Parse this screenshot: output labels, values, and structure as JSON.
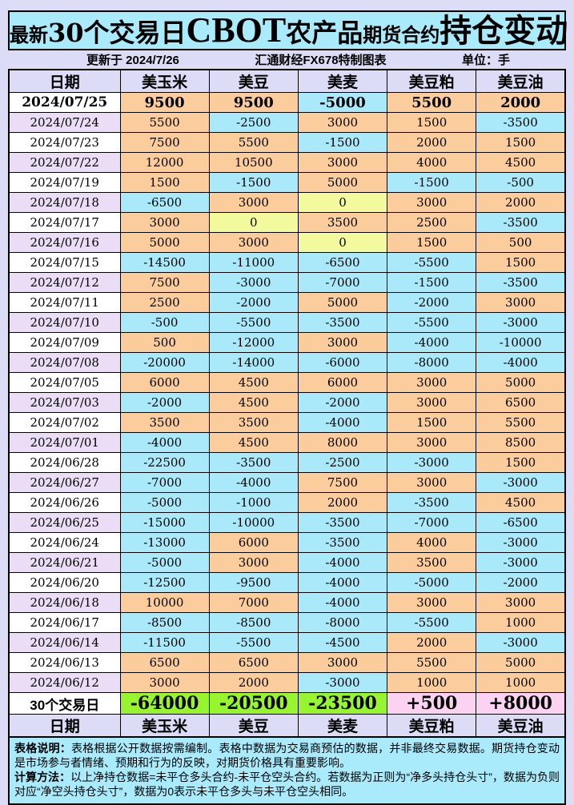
{
  "title": {
    "part1": "最新",
    "part2": "30个交易日",
    "part3": "CBOT",
    "part4": "农产品",
    "part5": "期货合约",
    "part6": "持仓变动"
  },
  "subtitle": {
    "updated": "更新于 2024/7/26",
    "source": "汇通财经FX678特制图表",
    "unit": "单位：手"
  },
  "chart_data": {
    "type": "table",
    "title": "最新30个交易日CBOT农产品期货合约持仓变动",
    "unit": "手",
    "columns": [
      "日期",
      "美玉米",
      "美豆",
      "美麦",
      "美豆粕",
      "美豆油"
    ],
    "rows": [
      {
        "date": "2024/07/25",
        "values": [
          9500,
          9500,
          -5000,
          5500,
          2000
        ]
      },
      {
        "date": "2024/07/24",
        "values": [
          5500,
          -2500,
          3000,
          1500,
          -3500
        ]
      },
      {
        "date": "2024/07/23",
        "values": [
          7500,
          5500,
          -1500,
          2000,
          1500
        ]
      },
      {
        "date": "2024/07/22",
        "values": [
          12000,
          10500,
          3000,
          4000,
          4500
        ]
      },
      {
        "date": "2024/07/19",
        "values": [
          1500,
          -1500,
          5000,
          -1500,
          -500
        ]
      },
      {
        "date": "2024/07/18",
        "values": [
          -6500,
          3000,
          0,
          3000,
          2000
        ]
      },
      {
        "date": "2024/07/17",
        "values": [
          3000,
          0,
          3500,
          2500,
          -3500
        ]
      },
      {
        "date": "2024/07/16",
        "values": [
          5000,
          3000,
          0,
          1500,
          500
        ]
      },
      {
        "date": "2024/07/15",
        "values": [
          -14500,
          -11000,
          -6500,
          -5500,
          1500
        ]
      },
      {
        "date": "2024/07/12",
        "values": [
          7500,
          -3000,
          -7000,
          -1500,
          -3500
        ]
      },
      {
        "date": "2024/07/11",
        "values": [
          2500,
          -2000,
          5000,
          -2000,
          3000
        ]
      },
      {
        "date": "2024/07/10",
        "values": [
          -500,
          -5500,
          -3500,
          -5500,
          -3000
        ]
      },
      {
        "date": "2024/07/09",
        "values": [
          500,
          -12000,
          3000,
          -4000,
          -10000
        ]
      },
      {
        "date": "2024/07/08",
        "values": [
          -20000,
          -14000,
          -6000,
          -8000,
          -4000
        ]
      },
      {
        "date": "2024/07/05",
        "values": [
          6000,
          4500,
          6000,
          3000,
          5000
        ]
      },
      {
        "date": "2024/07/03",
        "values": [
          -2000,
          4500,
          -2000,
          3000,
          6500
        ]
      },
      {
        "date": "2024/07/02",
        "values": [
          3500,
          3500,
          -4000,
          1500,
          5500
        ]
      },
      {
        "date": "2024/07/01",
        "values": [
          -4000,
          4500,
          8000,
          3000,
          8500
        ]
      },
      {
        "date": "2024/06/28",
        "values": [
          -22500,
          -3500,
          -2500,
          -3000,
          1500
        ]
      },
      {
        "date": "2024/06/27",
        "values": [
          -7000,
          -4000,
          7500,
          3000,
          -3000
        ]
      },
      {
        "date": "2024/06/26",
        "values": [
          -5000,
          -1000,
          2000,
          -3500,
          4500
        ]
      },
      {
        "date": "2024/06/25",
        "values": [
          -15000,
          -10000,
          -3500,
          -7000,
          -6500
        ]
      },
      {
        "date": "2024/06/24",
        "values": [
          -13000,
          6000,
          -3500,
          4000,
          -3000
        ]
      },
      {
        "date": "2024/06/21",
        "values": [
          -5000,
          3000,
          -4000,
          3500,
          -3000
        ]
      },
      {
        "date": "2024/06/20",
        "values": [
          -12500,
          -9500,
          -4000,
          -5000,
          -2000
        ]
      },
      {
        "date": "2024/06/18",
        "values": [
          10000,
          7000,
          -4000,
          3000,
          3000
        ]
      },
      {
        "date": "2024/06/17",
        "values": [
          -8500,
          -8500,
          -8000,
          -5500,
          1000
        ]
      },
      {
        "date": "2024/06/14",
        "values": [
          -11500,
          -5500,
          -4500,
          2000,
          -3000
        ]
      },
      {
        "date": "2024/06/13",
        "values": [
          6500,
          6500,
          3000,
          5500,
          5000
        ]
      },
      {
        "date": "2024/06/12",
        "values": [
          3000,
          2000,
          -3000,
          1000,
          1000
        ]
      }
    ],
    "totals_label": "30个交易日",
    "totals": [
      -64000,
      -20500,
      -23500,
      500,
      8000
    ],
    "totals_display": [
      "-64000",
      "-20500",
      "-23500",
      "+500",
      "+8000"
    ],
    "footer_columns": [
      "日期",
      "美玉米",
      "美豆",
      "美麦",
      "美豆粕",
      "美豆油"
    ]
  },
  "notes": {
    "line1_label": "表格说明：",
    "line1_text": "表格根据公开数据按需编制。表格中数据为交易商预估的数据，并非最终交易数据。期货持仓变动是市场参与者情绪、预期和行为的反映，对期货价格具有重要影响。",
    "line2_label": "计算方法：",
    "line2_text": "以上净持仓数据=未平仓多头合约-未平仓空头合约。若数据为正则为“净多头持仓头寸”，数据为负则对应“净空头持仓头寸”，数据为0表示未平仓多头与未平仓空头相同。"
  },
  "colors": {
    "page_bg": "#DCDCF6",
    "panel_cyan": "#A9EAFB",
    "positive_cell": "#FBCD9C",
    "negative_cell": "#A9E9FA",
    "zero_cell": "#F3FA9D",
    "total_negative_green": "#97F52F",
    "total_positive_pink": "#FBD2F2",
    "date_alt_purple": "#EADDF5",
    "border": "#000000"
  }
}
